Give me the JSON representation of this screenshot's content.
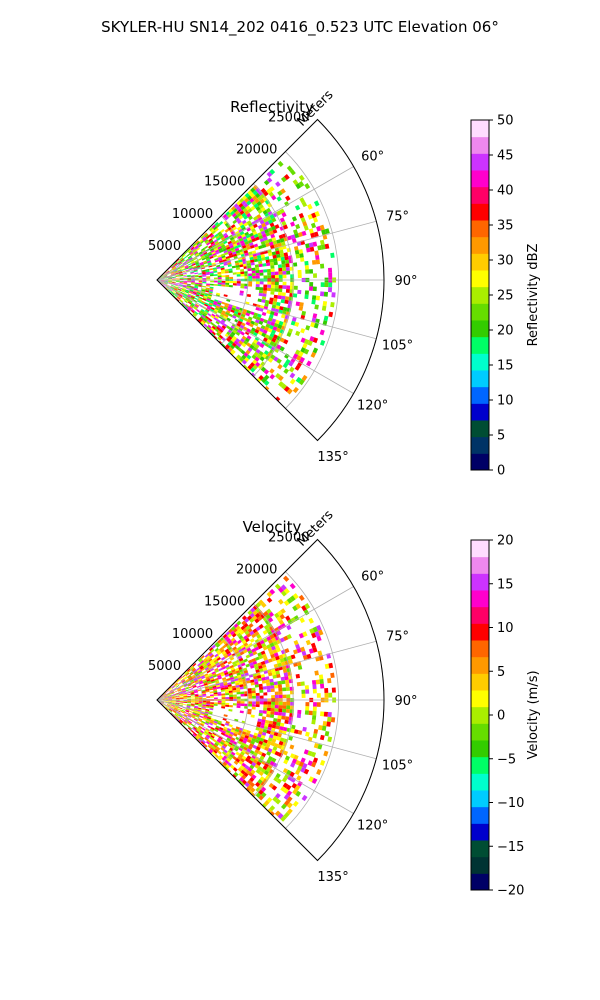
{
  "figure": {
    "suptitle": "SKYLER-HU  SN14_202  0416_0.523 UTC Elevation 06°"
  },
  "chart_data": [
    {
      "type": "heatmap",
      "kind": "polar-sector-radar",
      "title": "Reflectivity",
      "range_label": "Meters",
      "range_ticks": [
        "5000",
        "10000",
        "15000",
        "20000",
        "25000"
      ],
      "range_tick_values": [
        5000,
        10000,
        15000,
        20000,
        25000
      ],
      "range_max": 25000,
      "azimuth_ticks": [
        "60°",
        "75°",
        "90°",
        "105°",
        "120°",
        "135°"
      ],
      "azimuth_tick_values": [
        60,
        75,
        90,
        105,
        120,
        135
      ],
      "azimuth_range": [
        45,
        135
      ],
      "grid": true,
      "colorbar": {
        "label": "Reflectivity dBZ",
        "ticks": [
          "0",
          "5",
          "10",
          "15",
          "20",
          "25",
          "30",
          "35",
          "40",
          "45",
          "50"
        ],
        "range": [
          0,
          50
        ],
        "colors": [
          "#000066",
          "#003366",
          "#004d33",
          "#0000cc",
          "#0066ff",
          "#00ccff",
          "#00ffcc",
          "#00ff66",
          "#33cc00",
          "#66dd00",
          "#aaee00",
          "#ffff00",
          "#ffcc00",
          "#ff9900",
          "#ff6600",
          "#ff0000",
          "#ff0066",
          "#ff00cc",
          "#cc33ff",
          "#ee88ee",
          "#ffddff"
        ]
      }
    },
    {
      "type": "heatmap",
      "kind": "polar-sector-radar",
      "title": "Velocity",
      "range_label": "Meters",
      "range_ticks": [
        "5000",
        "10000",
        "15000",
        "20000",
        "25000"
      ],
      "range_tick_values": [
        5000,
        10000,
        15000,
        20000,
        25000
      ],
      "range_max": 25000,
      "azimuth_ticks": [
        "60°",
        "75°",
        "90°",
        "105°",
        "120°",
        "135°"
      ],
      "azimuth_tick_values": [
        60,
        75,
        90,
        105,
        120,
        135
      ],
      "azimuth_range": [
        45,
        135
      ],
      "grid": true,
      "colorbar": {
        "label": "Velocity (m/s)",
        "ticks": [
          "−20",
          "−15",
          "−10",
          "−5",
          "0",
          "5",
          "10",
          "15",
          "20"
        ],
        "range": [
          -20,
          20
        ],
        "colors": [
          "#000066",
          "#003333",
          "#004d33",
          "#0000cc",
          "#0066ff",
          "#00ccff",
          "#00ffcc",
          "#00ff66",
          "#33cc00",
          "#66dd00",
          "#aaee00",
          "#ffff00",
          "#ffcc00",
          "#ff9900",
          "#ff6600",
          "#ff0000",
          "#ff0066",
          "#ff00cc",
          "#cc33ff",
          "#ee88ee",
          "#ffddff"
        ]
      }
    }
  ]
}
